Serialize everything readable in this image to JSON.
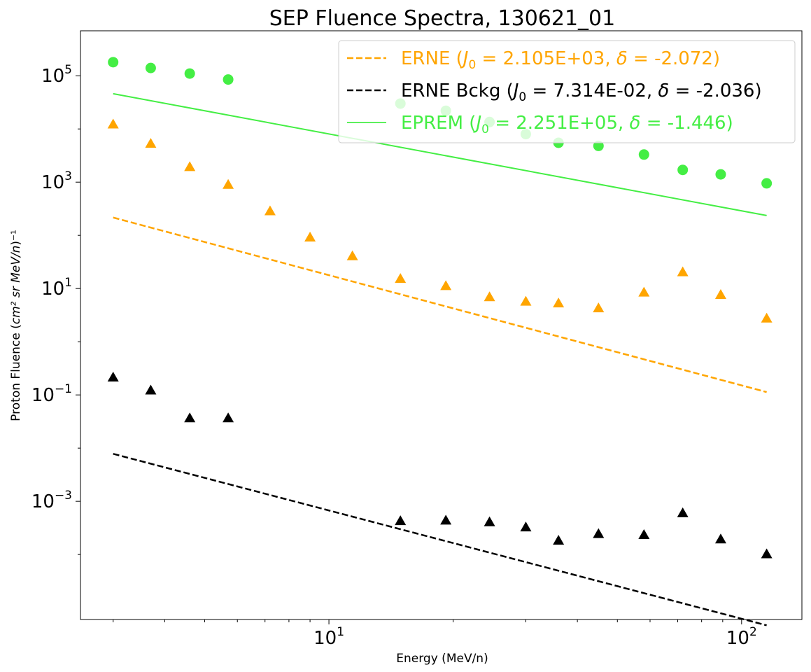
{
  "chart_data": {
    "type": "scatter",
    "title": "SEP Fluence Spectra, 130621_01",
    "xlabel": "Energy (MeV/n)",
    "ylabel_prefix": "Proton Fluence (",
    "ylabel_math": "cm² sr MeV/n",
    "ylabel_suffix": ")⁻¹",
    "x_scale": "log",
    "y_scale": "log",
    "xlim": [
      2.5,
      140
    ],
    "ylim": [
      6e-06,
      700000
    ],
    "grid": false,
    "legend_position": "top-right",
    "x_ticks": [
      {
        "value": 10,
        "base": "10",
        "exp": "1"
      },
      {
        "value": 100,
        "base": "10",
        "exp": "2"
      }
    ],
    "y_ticks": [
      {
        "value": 0.001,
        "base": "10",
        "exp": "−3"
      },
      {
        "value": 0.1,
        "base": "10",
        "exp": "−1"
      },
      {
        "value": 10,
        "base": "10",
        "exp": "1"
      },
      {
        "value": 1000,
        "base": "10",
        "exp": "3"
      },
      {
        "value": 100000,
        "base": "10",
        "exp": "5"
      }
    ],
    "x_minor_ticks": [
      3,
      4,
      5,
      6,
      7,
      8,
      9,
      20,
      30,
      40,
      50,
      60,
      70,
      80,
      90
    ],
    "series": [
      {
        "name": "ERNE",
        "legend_pre": "ERNE (",
        "J0": "2.105E+03",
        "delta": "-2.072",
        "color": "#FFA500",
        "marker": "triangle",
        "line": "dashed",
        "fit_J0": 2105,
        "fit_delta": -2.072,
        "x": [
          3.0,
          3.7,
          4.6,
          5.7,
          7.2,
          9.0,
          11.4,
          14.9,
          19.2,
          24.5,
          30.0,
          36.0,
          45.0,
          58.0,
          72.0,
          89.0,
          115.0
        ],
        "y": [
          12000,
          5200,
          1900,
          880,
          280,
          90,
          40,
          15,
          11,
          6.8,
          5.6,
          5.2,
          4.2,
          8.3,
          20,
          7.5,
          2.7
        ]
      },
      {
        "name": "ERNE Bckg",
        "legend_pre": "ERNE Bckg (",
        "J0": "7.314E-02",
        "delta": "-2.036",
        "color": "#000000",
        "marker": "triangle",
        "line": "dashed",
        "fit_J0": 0.07314,
        "fit_delta": -2.036,
        "x": [
          3.0,
          3.7,
          4.6,
          5.7,
          14.9,
          19.2,
          24.5,
          30.0,
          36.0,
          45.0,
          58.0,
          72.0,
          89.0,
          115.0
        ],
        "y": [
          0.21,
          0.12,
          0.036,
          0.036,
          0.00042,
          0.00043,
          0.0004,
          0.00032,
          0.00018,
          0.00024,
          0.00023,
          0.00059,
          0.00019,
          0.0001
        ]
      },
      {
        "name": "EPREM",
        "legend_pre": "EPREM (",
        "J0": "2.251E+05",
        "delta": "-1.446",
        "color": "#44EE44",
        "marker": "circle",
        "line": "solid",
        "fit_J0": 225100,
        "fit_delta": -1.446,
        "x": [
          3.0,
          3.7,
          4.6,
          5.7,
          14.9,
          19.2,
          24.5,
          30.0,
          36.0,
          45.0,
          58.0,
          72.0,
          89.0,
          115.0
        ],
        "y": [
          180000,
          140000,
          110000,
          85000,
          30000,
          22000,
          13500,
          8000,
          5500,
          4800,
          3300,
          1700,
          1400,
          950
        ]
      }
    ]
  }
}
